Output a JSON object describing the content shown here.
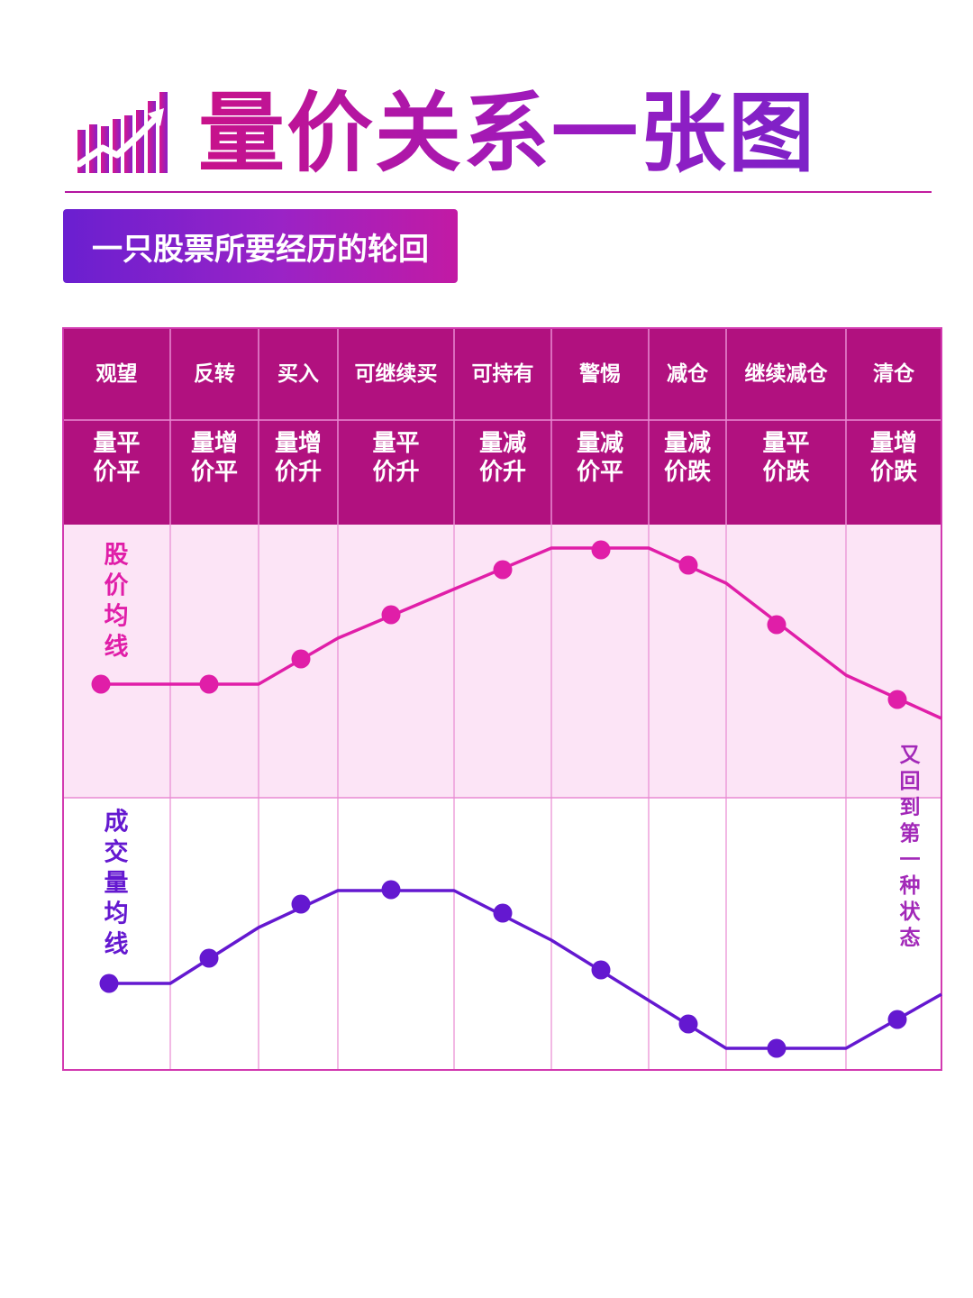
{
  "title": "量价关系一张图",
  "subtitle": "一只股票所要经历的轮回",
  "colors": {
    "header_bg": "#b1117f",
    "price_line": "#e01ea8",
    "price_band_bg": "#fce4f6",
    "volume_line": "#6418d0",
    "grid_line": "#e98ad3",
    "border": "#d23ab0",
    "side_note": "#a228b8"
  },
  "stages": [
    {
      "name": "观望",
      "vol": "量平",
      "price": "价平"
    },
    {
      "name": "反转",
      "vol": "量增",
      "price": "价平"
    },
    {
      "name": "买入",
      "vol": "量增",
      "price": "价升"
    },
    {
      "name": "可继续买",
      "vol": "量平",
      "price": "价升"
    },
    {
      "name": "可持有",
      "vol": "量减",
      "price": "价升"
    },
    {
      "name": "警惕",
      "vol": "量减",
      "price": "价平"
    },
    {
      "name": "减仓",
      "vol": "量减",
      "price": "价跌"
    },
    {
      "name": "继续减仓",
      "vol": "量平",
      "price": "价跌"
    },
    {
      "name": "清仓",
      "vol": "量增",
      "price": "价跌"
    }
  ],
  "price_label": "股价均线",
  "volume_label": "成交量均线",
  "side_note": "又回到第一种状态"
}
